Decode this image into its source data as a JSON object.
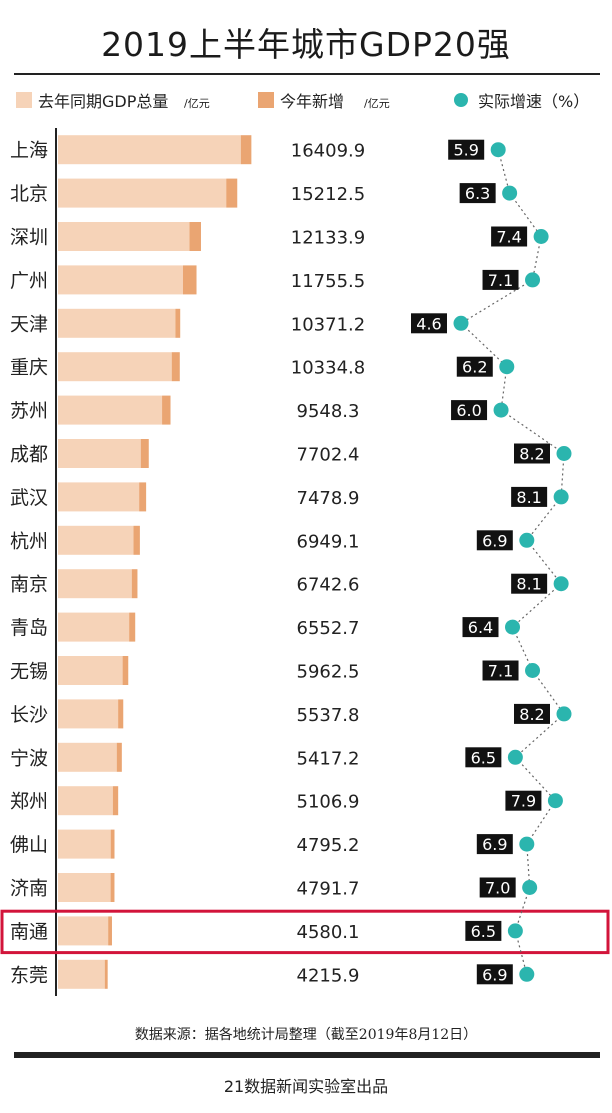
{
  "title": "2019上半年城市GDP20强",
  "legend": {
    "prev": "去年同期GDP总量",
    "prev_unit": "/亿元",
    "new": "今年新增",
    "new_unit": "/亿元",
    "growth": "实际增速（%）"
  },
  "colors": {
    "prev_bar": "#f6d3b8",
    "new_bar": "#eaa572",
    "dot": "#2bb5ae",
    "highlight": "#d2143a",
    "label_bg": "#111111",
    "label_text": "#ffffff"
  },
  "chart_data": {
    "type": "bar",
    "categories": [
      "上海",
      "北京",
      "深圳",
      "广州",
      "天津",
      "重庆",
      "苏州",
      "成都",
      "武汉",
      "杭州",
      "南京",
      "青岛",
      "无锡",
      "长沙",
      "宁波",
      "郑州",
      "佛山",
      "济南",
      "南通",
      "东莞"
    ],
    "series": [
      {
        "name": "去年同期GDP总量",
        "values": [
          15512.9,
          14276.4,
          11161.3,
          10606.8,
          9967.2,
          9650.3,
          8831.3,
          7022.6,
          6886.3,
          6408.9,
          6260.3,
          6037.2,
          5483.3,
          5101.7,
          4985.6,
          4653.0,
          4471.9,
          4463.9,
          4256.4,
          3969.5
        ]
      },
      {
        "name": "今年新增",
        "values": [
          897.0,
          936.1,
          972.6,
          1148.7,
          404.0,
          684.5,
          717.0,
          679.8,
          592.6,
          540.2,
          482.3,
          515.5,
          479.2,
          436.1,
          431.6,
          453.9,
          323.3,
          327.8,
          323.7,
          246.4
        ]
      },
      {
        "name": "实际增速（%）",
        "values": [
          5.9,
          6.3,
          7.4,
          7.1,
          4.6,
          6.2,
          6.0,
          8.2,
          8.1,
          6.9,
          8.1,
          6.4,
          7.1,
          8.2,
          6.5,
          7.9,
          6.9,
          7.0,
          6.5,
          6.9
        ]
      }
    ],
    "totals": [
      "16409.9",
      "15212.5",
      "12133.9",
      "11755.5",
      "10371.2",
      "10334.8",
      "9548.3",
      "7702.4",
      "7478.9",
      "6949.1",
      "6742.6",
      "6552.7",
      "5962.5",
      "5537.8",
      "5417.2",
      "5106.9",
      "4795.2",
      "4791.7",
      "4580.1",
      "4215.9"
    ],
    "growth_labels": [
      "5.9",
      "6.3",
      "7.4",
      "7.1",
      "4.6",
      "6.2",
      "6.0",
      "8.2",
      "8.1",
      "6.9",
      "8.1",
      "6.4",
      "7.1",
      "8.2",
      "6.5",
      "7.9",
      "6.9",
      "7.0",
      "6.5",
      "6.9"
    ],
    "highlight_category": "南通",
    "bar_scale_max": 18500,
    "growth_range": [
      4.6,
      8.2
    ]
  },
  "source": "数据来源：据各地统计局整理（截至2019年8月12日）",
  "footer": "21数据新闻实验室出品"
}
